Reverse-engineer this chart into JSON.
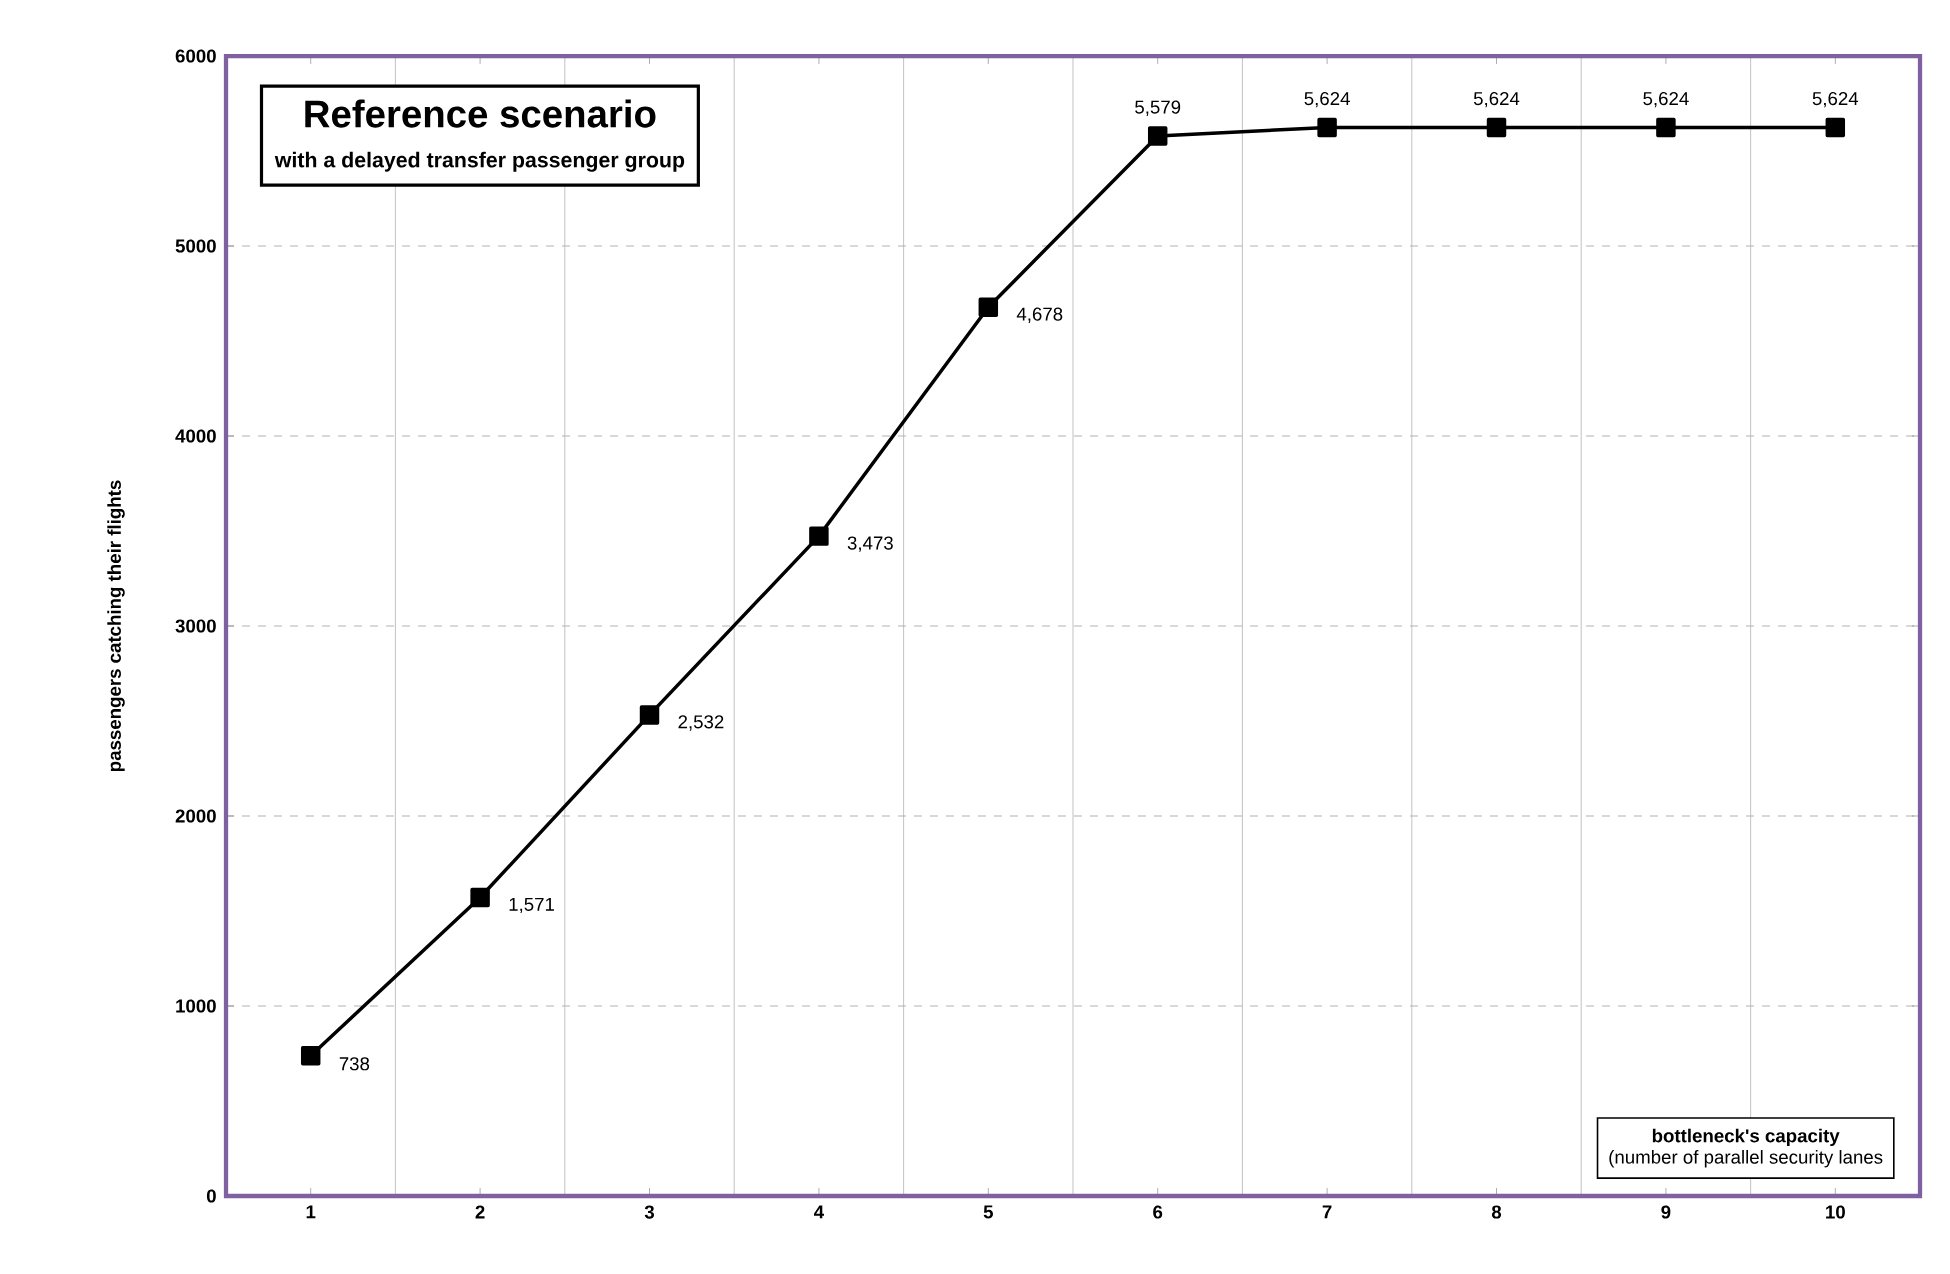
{
  "chart_data": {
    "type": "line",
    "title": "Reference scenario",
    "subtitle": "with a delayed transfer passenger group",
    "xlabel": "bottleneck's capacity",
    "annotations": [
      "(number of parallel security lanes"
    ],
    "ylabel": "passengers catching their flights",
    "x": [
      1,
      2,
      3,
      4,
      5,
      6,
      7,
      8,
      9,
      10
    ],
    "series": [
      {
        "color": "#000000",
        "values": [
          738,
          1571,
          2532,
          3473,
          4678,
          5579,
          5624,
          5624,
          5624,
          5624
        ],
        "value_labels": [
          "738",
          "1,571",
          "2,532",
          "3,473",
          "4,678",
          "5,579",
          "5,624",
          "5,624",
          "5,624",
          "5,624"
        ]
      }
    ],
    "xlim": [
      0.5,
      10.5
    ],
    "xticks": [
      1,
      2,
      3,
      4,
      5,
      6,
      7,
      8,
      9,
      10
    ],
    "ylim": [
      0,
      6000
    ],
    "yticks": [
      0,
      1000,
      2000,
      3000,
      4000,
      5000,
      6000
    ],
    "grid": true,
    "marker": "square",
    "line_style": "solid"
  }
}
